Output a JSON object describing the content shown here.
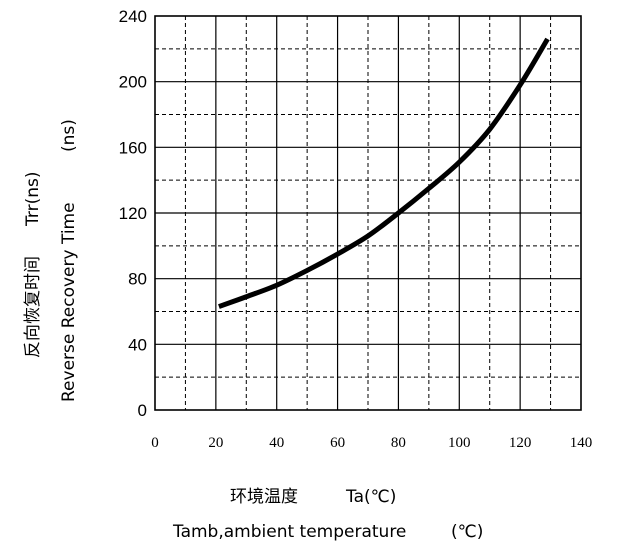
{
  "chart_data": {
    "type": "line",
    "xlabel_cn": "环境温度",
    "xlabel_sym": "Ta(℃)",
    "xlabel_en": "Tamb,ambient temperature",
    "xlabel_unit": "(℃)",
    "ylabel_cn": "反向恢复时间",
    "ylabel_sym": "Trr(ns)",
    "ylabel_en": "Reverse Recovery Time",
    "ylabel_unit": "(ns)",
    "xlim": [
      0,
      140
    ],
    "ylim": [
      0,
      240
    ],
    "xticks": [
      0,
      20,
      40,
      60,
      80,
      100,
      120,
      140
    ],
    "xtick_labels": [
      "0",
      "20",
      "40",
      "60",
      "80",
      "100",
      "120",
      "140"
    ],
    "yticks": [
      0,
      40,
      80,
      120,
      160,
      200,
      240
    ],
    "ytick_labels": [
      "0",
      "40",
      "80",
      "120",
      "160",
      "200",
      "240"
    ],
    "grid": {
      "major_solid_x": [
        20,
        40,
        60,
        80,
        100,
        120
      ],
      "minor_dashed_x": [
        10,
        30,
        50,
        70,
        90,
        110,
        130
      ],
      "major_solid_y": [
        40,
        80,
        120,
        160,
        200
      ],
      "minor_dashed_y": [
        20,
        60,
        100,
        140,
        180,
        220
      ]
    },
    "series": [
      {
        "x": [
          21,
          30,
          40,
          50,
          60,
          70,
          80,
          90,
          100,
          110,
          120,
          129
        ],
        "y": [
          63,
          69,
          76,
          85,
          95,
          106,
          120,
          135,
          151,
          171,
          198,
          226
        ]
      }
    ]
  }
}
